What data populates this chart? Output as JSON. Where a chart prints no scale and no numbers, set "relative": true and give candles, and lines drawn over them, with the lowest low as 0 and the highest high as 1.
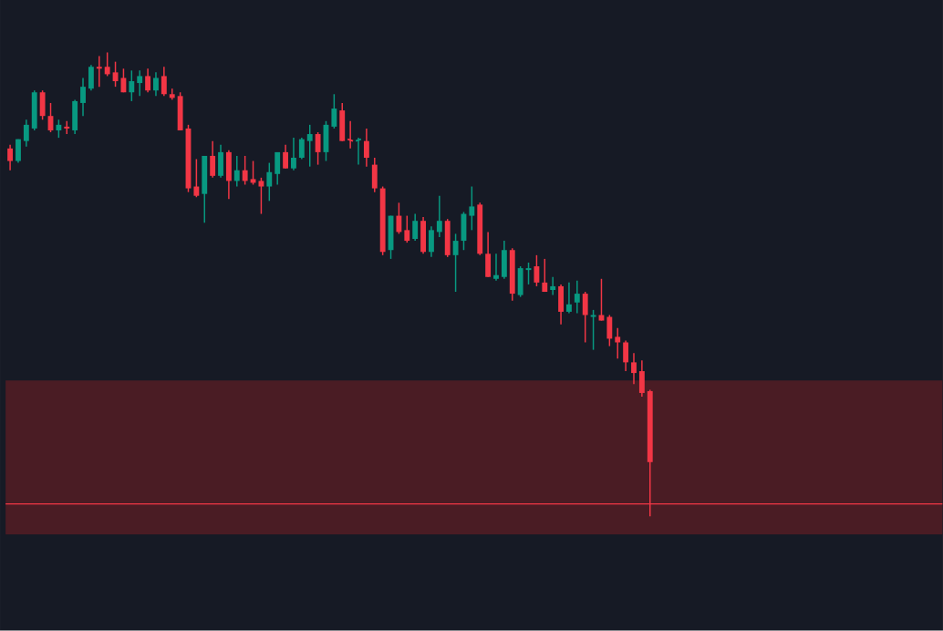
{
  "chart_data": {
    "type": "candlestick",
    "relative": true,
    "categories": [
      null,
      null,
      null,
      null,
      null,
      null,
      null,
      null,
      null,
      null,
      null,
      null,
      null,
      null,
      null,
      null,
      null,
      null,
      null,
      null,
      null,
      null,
      null,
      null,
      null,
      null,
      null,
      null,
      null,
      null,
      null,
      null,
      null,
      null,
      null,
      null,
      null,
      null,
      null,
      null,
      null,
      null,
      null,
      null,
      null,
      null,
      null,
      null,
      null,
      null,
      null,
      null,
      null,
      null,
      null,
      null,
      null,
      null,
      null,
      null,
      null,
      null,
      null,
      null,
      null,
      null,
      null,
      null,
      null,
      null,
      null,
      null,
      null,
      null,
      null,
      null,
      null,
      null,
      null,
      null
    ],
    "ohlc": [
      [
        0.793,
        0.801,
        0.746,
        0.766
      ],
      [
        0.766,
        0.813,
        0.762,
        0.813
      ],
      [
        0.809,
        0.855,
        0.797,
        0.844
      ],
      [
        0.836,
        0.918,
        0.832,
        0.914
      ],
      [
        0.914,
        0.918,
        0.855,
        0.863
      ],
      [
        0.863,
        0.891,
        0.828,
        0.832
      ],
      [
        0.832,
        0.855,
        0.816,
        0.844
      ],
      [
        0.84,
        0.852,
        0.824,
        0.836
      ],
      [
        0.832,
        0.898,
        0.824,
        0.895
      ],
      [
        0.891,
        0.945,
        0.863,
        0.926
      ],
      [
        0.922,
        0.973,
        0.918,
        0.969
      ],
      [
        0.969,
        0.992,
        0.926,
        0.965
      ],
      [
        0.969,
        1,
        0.949,
        0.953
      ],
      [
        0.957,
        0.98,
        0.926,
        0.938
      ],
      [
        0.945,
        0.965,
        0.914,
        0.914
      ],
      [
        0.914,
        0.961,
        0.895,
        0.938
      ],
      [
        0.934,
        0.961,
        0.906,
        0.949
      ],
      [
        0.949,
        0.965,
        0.914,
        0.918
      ],
      [
        0.918,
        0.957,
        0.906,
        0.945
      ],
      [
        0.949,
        0.969,
        0.906,
        0.91
      ],
      [
        0.91,
        0.922,
        0.898,
        0.902
      ],
      [
        0.906,
        0.914,
        0.832,
        0.832
      ],
      [
        0.836,
        0.844,
        0.699,
        0.707
      ],
      [
        0.711,
        0.77,
        0.688,
        0.691
      ],
      [
        0.695,
        0.777,
        0.633,
        0.777
      ],
      [
        0.777,
        0.809,
        0.73,
        0.734
      ],
      [
        0.734,
        0.801,
        0.73,
        0.785
      ],
      [
        0.785,
        0.789,
        0.684,
        0.723
      ],
      [
        0.723,
        0.777,
        0.711,
        0.746
      ],
      [
        0.746,
        0.777,
        0.715,
        0.723
      ],
      [
        0.727,
        0.766,
        0.715,
        0.719
      ],
      [
        0.723,
        0.73,
        0.652,
        0.711
      ],
      [
        0.711,
        0.762,
        0.68,
        0.742
      ],
      [
        0.738,
        0.785,
        0.715,
        0.785
      ],
      [
        0.785,
        0.801,
        0.75,
        0.75
      ],
      [
        0.75,
        0.816,
        0.746,
        0.773
      ],
      [
        0.773,
        0.816,
        0.77,
        0.813
      ],
      [
        0.809,
        0.844,
        0.754,
        0.824
      ],
      [
        0.824,
        0.828,
        0.758,
        0.785
      ],
      [
        0.785,
        0.852,
        0.766,
        0.844
      ],
      [
        0.84,
        0.91,
        0.836,
        0.879
      ],
      [
        0.875,
        0.891,
        0.809,
        0.809
      ],
      [
        0.813,
        0.852,
        0.793,
        0.809
      ],
      [
        0.809,
        0.816,
        0.758,
        0.813
      ],
      [
        0.809,
        0.836,
        0.754,
        0.773
      ],
      [
        0.758,
        0.773,
        0.699,
        0.707
      ],
      [
        0.707,
        0.711,
        0.563,
        0.57
      ],
      [
        0.574,
        0.648,
        0.555,
        0.648
      ],
      [
        0.648,
        0.676,
        0.609,
        0.613
      ],
      [
        0.617,
        0.648,
        0.59,
        0.594
      ],
      [
        0.598,
        0.652,
        0.594,
        0.637
      ],
      [
        0.637,
        0.645,
        0.566,
        0.57
      ],
      [
        0.57,
        0.625,
        0.559,
        0.617
      ],
      [
        0.613,
        0.691,
        0.602,
        0.637
      ],
      [
        0.637,
        0.641,
        0.559,
        0.563
      ],
      [
        0.563,
        0.609,
        0.484,
        0.594
      ],
      [
        0.594,
        0.656,
        0.574,
        0.652
      ],
      [
        0.648,
        0.711,
        0.617,
        0.668
      ],
      [
        0.672,
        0.676,
        0.563,
        0.566
      ],
      [
        0.566,
        0.613,
        0.516,
        0.516
      ],
      [
        0.512,
        0.566,
        0.508,
        0.52
      ],
      [
        0.516,
        0.594,
        0.512,
        0.574
      ],
      [
        0.574,
        0.578,
        0.465,
        0.48
      ],
      [
        0.477,
        0.539,
        0.473,
        0.535
      ],
      [
        0.531,
        0.547,
        0.5,
        0.535
      ],
      [
        0.539,
        0.563,
        0.496,
        0.504
      ],
      [
        0.504,
        0.555,
        0.484,
        0.484
      ],
      [
        0.488,
        0.516,
        0.477,
        0.496
      ],
      [
        0.496,
        0.5,
        0.414,
        0.441
      ],
      [
        0.441,
        0.504,
        0.438,
        0.457
      ],
      [
        0.461,
        0.508,
        0.438,
        0.48
      ],
      [
        0.48,
        0.484,
        0.375,
        0.434
      ],
      [
        0.43,
        0.445,
        0.359,
        0.434
      ],
      [
        0.434,
        0.512,
        0.422,
        0.422
      ],
      [
        0.43,
        0.434,
        0.367,
        0.383
      ],
      [
        0.387,
        0.406,
        0.34,
        0.375
      ],
      [
        0.375,
        0.379,
        0.313,
        0.332
      ],
      [
        0.332,
        0.352,
        0.285,
        0.309
      ],
      [
        0.313,
        0.336,
        0.258,
        0.266
      ],
      [
        0.27,
        0.273,
        0,
        0.117
      ]
    ],
    "colors": [
      "#f23645",
      "#089981",
      "#089981",
      "#089981",
      "#f23645",
      "#f23645",
      "#089981",
      "#f23645",
      "#089981",
      "#089981",
      "#089981",
      "#f23645",
      "#f23645",
      "#f23645",
      "#f23645",
      "#089981",
      "#089981",
      "#f23645",
      "#089981",
      "#f23645",
      "#f23645",
      "#f23645",
      "#f23645",
      "#f23645",
      "#089981",
      "#f23645",
      "#089981",
      "#f23645",
      "#089981",
      "#f23645",
      "#f23645",
      "#f23645",
      "#089981",
      "#089981",
      "#f23645",
      "#089981",
      "#089981",
      "#089981",
      "#f23645",
      "#089981",
      "#089981",
      "#f23645",
      "#f23645",
      "#089981",
      "#f23645",
      "#f23645",
      "#f23645",
      "#089981",
      "#f23645",
      "#f23645",
      "#089981",
      "#f23645",
      "#089981",
      "#089981",
      "#f23645",
      "#089981",
      "#089981",
      "#089981",
      "#f23645",
      "#f23645",
      "#089981",
      "#089981",
      "#f23645",
      "#089981",
      "#089981",
      "#f23645",
      "#f23645",
      "#089981",
      "#f23645",
      "#089981",
      "#089981",
      "#f23645",
      "#089981",
      "#f23645",
      "#f23645",
      "#f23645",
      "#f23645",
      "#f23645",
      "#f23645",
      "#f23645"
    ],
    "bands": [
      {
        "axis": "y",
        "from": -0.039,
        "to": 0.293,
        "color": "#4a1c24"
      }
    ],
    "ref_lines": [
      {
        "axis": "y",
        "value": 0.027,
        "color": "#f23645",
        "line_style": "solid"
      }
    ]
  }
}
